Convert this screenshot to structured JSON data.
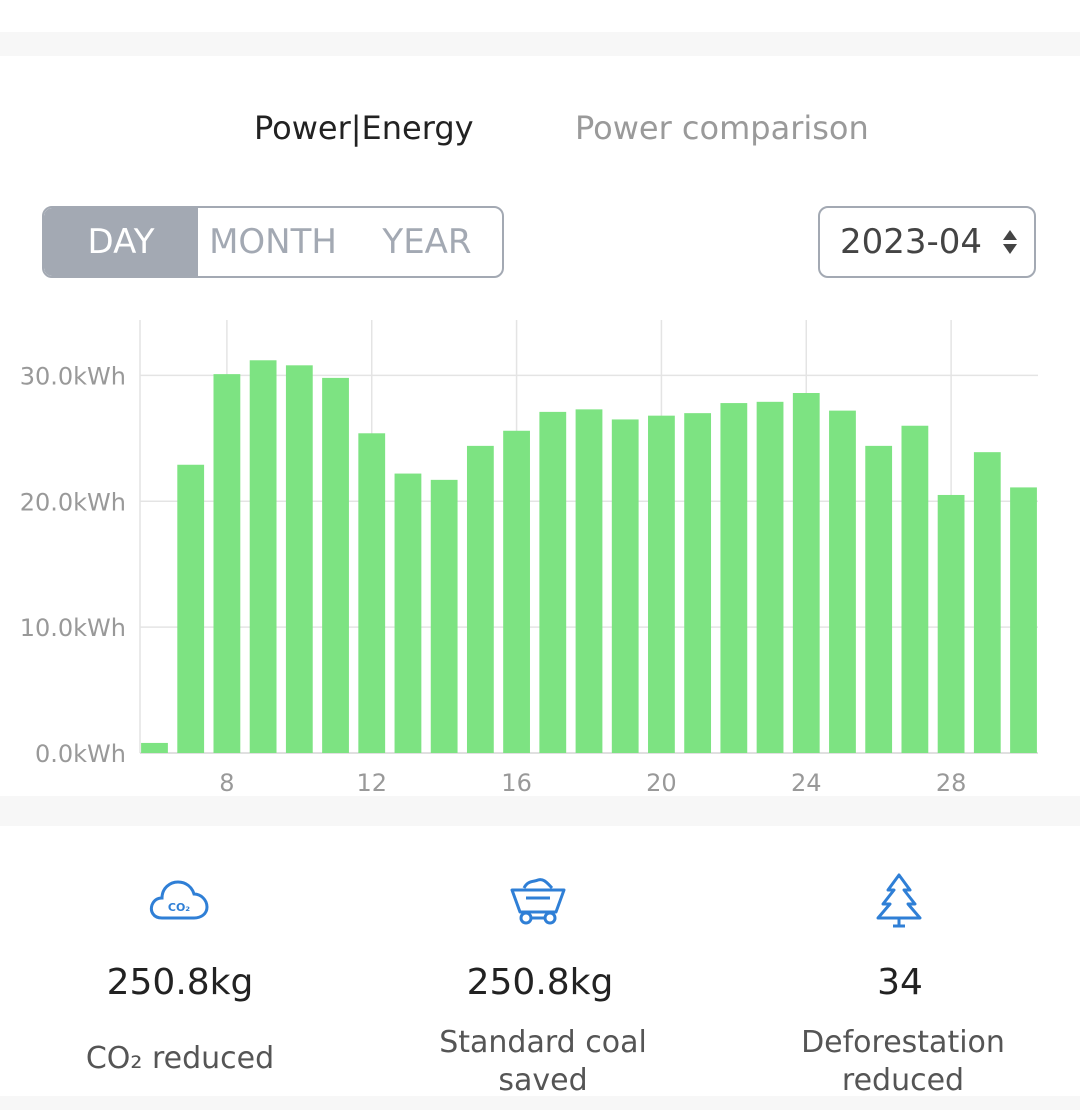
{
  "tabs": {
    "active": "Power|Energy",
    "inactive": "Power comparison"
  },
  "period_selector": {
    "day": "DAY",
    "month": "MONTH",
    "year": "YEAR",
    "selected": "DAY"
  },
  "date_picker": {
    "value": "2023-04"
  },
  "chart_data": {
    "type": "bar",
    "x": [
      6,
      7,
      8,
      9,
      10,
      11,
      12,
      13,
      14,
      15,
      16,
      17,
      18,
      19,
      20,
      21,
      22,
      23,
      24,
      25,
      26,
      27,
      28,
      29,
      30
    ],
    "values": [
      0.8,
      22.9,
      30.1,
      31.2,
      30.8,
      29.8,
      25.4,
      22.2,
      21.7,
      24.4,
      25.6,
      27.1,
      27.3,
      26.5,
      26.8,
      27.0,
      27.8,
      27.9,
      28.6,
      27.2,
      24.4,
      26.0,
      20.5,
      23.9,
      21.1
    ],
    "y_tick_labels": [
      "0.0kWh",
      "10.0kWh",
      "20.0kWh",
      "30.0kWh"
    ],
    "y_ticks": [
      0,
      10,
      20,
      30
    ],
    "x_tick_labels": [
      "8",
      "12",
      "16",
      "20",
      "24",
      "28"
    ],
    "x_ticks": [
      8,
      12,
      16,
      20,
      24,
      28
    ],
    "ylim": [
      0,
      34.4
    ],
    "xlim": [
      5.6,
      30.4
    ],
    "bar_color": "#7de382",
    "grid": true
  },
  "metrics": [
    {
      "icon": "co2-cloud-icon",
      "value": "250.8kg",
      "label": "CO₂ reduced"
    },
    {
      "icon": "coal-cart-icon",
      "value": "250.8kg",
      "label": "Standard coal saved"
    },
    {
      "icon": "tree-icon",
      "value": "34",
      "label": "Deforestation reduced"
    }
  ],
  "colors": {
    "accent": "#2f7fd6",
    "bar": "#7de382",
    "segment": "#a3a9b3"
  }
}
